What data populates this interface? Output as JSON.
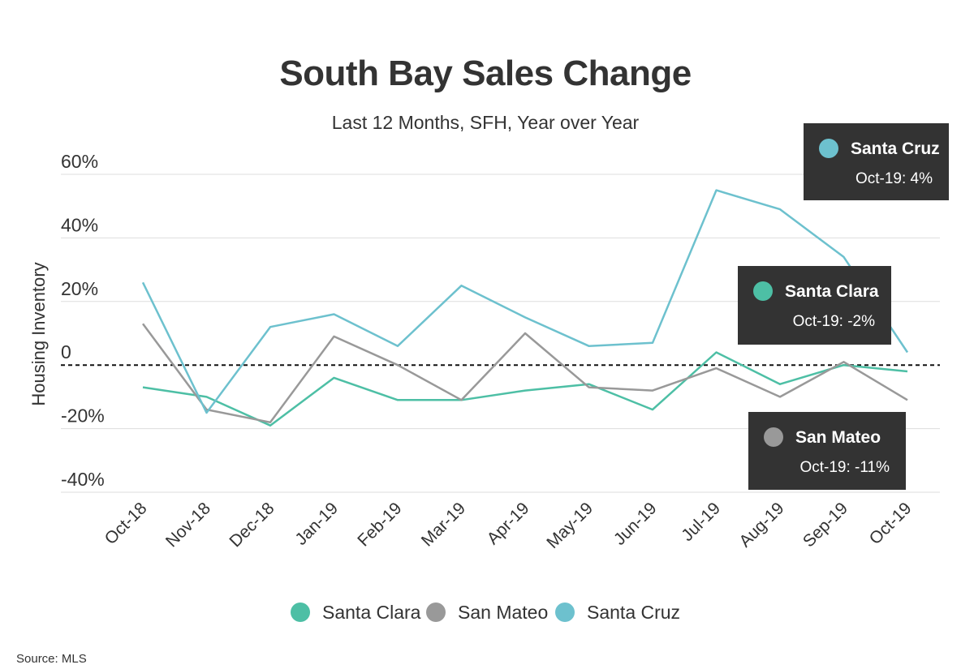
{
  "chart_data": {
    "type": "line",
    "title": "South Bay Sales Change",
    "subtitle": "Last 12 Months, SFH, Year over Year",
    "ylabel": "Housing Inventory",
    "xlabel": "",
    "ylim": [
      -40,
      60
    ],
    "ytick_values": [
      60,
      40,
      20,
      0,
      -20,
      -40
    ],
    "ytick_labels": [
      "60%",
      "40%",
      "20%",
      "0",
      "-20%",
      "-40%"
    ],
    "categories": [
      "Oct-18",
      "Nov-18",
      "Dec-18",
      "Jan-19",
      "Feb-19",
      "Mar-19",
      "Apr-19",
      "May-19",
      "Jun-19",
      "Jul-19",
      "Aug-19",
      "Sep-19",
      "Oct-19"
    ],
    "grid": true,
    "zero_line": "dashed",
    "series": [
      {
        "name": "Santa Clara",
        "color": "#4dbfa5",
        "values": [
          -7,
          -10,
          -19,
          -4,
          -11,
          -11,
          -8,
          -6,
          -14,
          4,
          -6,
          0,
          -2
        ]
      },
      {
        "name": "San Mateo",
        "color": "#999999",
        "values": [
          13,
          -14,
          -18,
          9,
          0,
          -11,
          10,
          -7,
          -8,
          -1,
          -10,
          1,
          -11
        ]
      },
      {
        "name": "Santa Cruz",
        "color": "#6dc1ce",
        "values": [
          26,
          -15,
          12,
          16,
          6,
          25,
          15,
          6,
          7,
          55,
          49,
          34,
          4
        ]
      }
    ],
    "tooltips": [
      {
        "series": "Santa Cruz",
        "label": "Oct-19: 4%"
      },
      {
        "series": "Santa Clara",
        "label": "Oct-19: -2%"
      },
      {
        "series": "San Mateo",
        "label": "Oct-19: -11%"
      }
    ],
    "legend_position": "bottom"
  },
  "source": "Source:  MLS"
}
